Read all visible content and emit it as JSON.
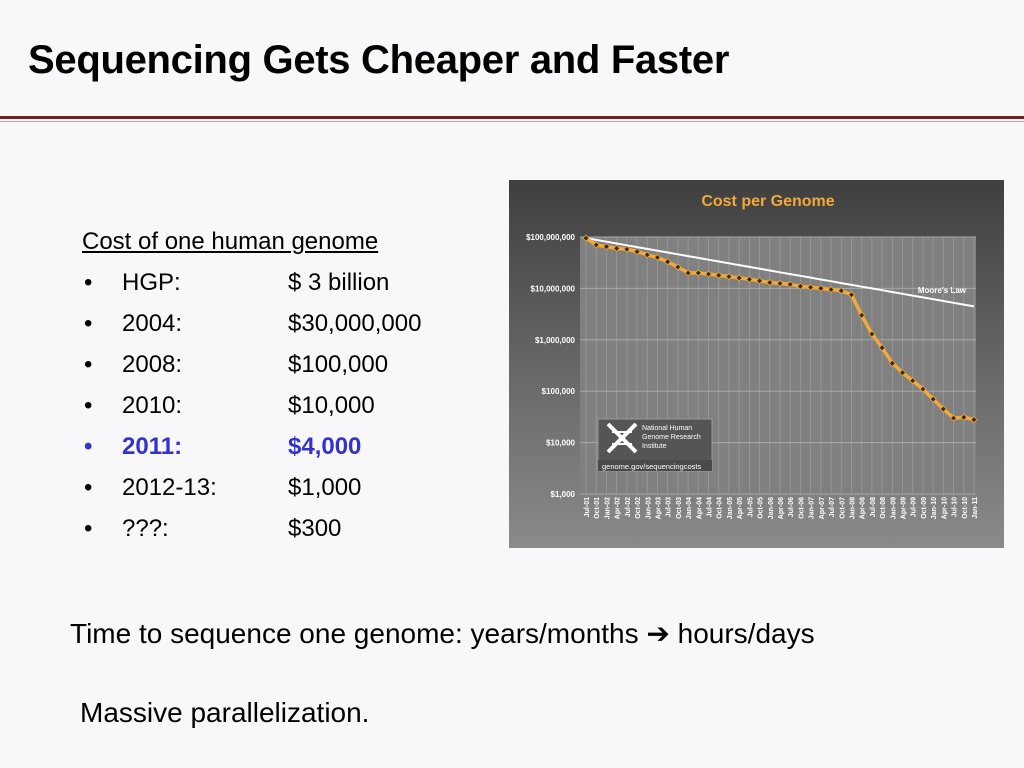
{
  "slide": {
    "title": "Sequencing Gets Cheaper and Faster",
    "list_heading": "Cost of one human genome",
    "items": [
      {
        "label": "HGP:",
        "value": "$ 3 billion",
        "highlight": false
      },
      {
        "label": "2004:",
        "value": "$30,000,000",
        "highlight": false
      },
      {
        "label": "2008:",
        "value": "$100,000",
        "highlight": false
      },
      {
        "label": "2010:",
        "value": "$10,000",
        "highlight": false
      },
      {
        "label": "2011:",
        "value": "$4,000",
        "highlight": true
      },
      {
        "label": "2012-13:",
        "value": "$1,000",
        "highlight": false
      },
      {
        "label": "???:",
        "value": "$300",
        "highlight": false
      }
    ],
    "bullet": "•",
    "time_line": "Time to sequence one genome:  years/months ➔ hours/days",
    "parallel_line": "Massive parallelization."
  },
  "colors": {
    "accent_rule": "#7a1f1f",
    "highlight": "#3333cc",
    "chart_title": "#f2a93b",
    "series_line": "#f2a93b",
    "marker": "#3a2a00",
    "moores_law": "#ffffff"
  },
  "chart_data": {
    "type": "line",
    "title": "Cost per Genome",
    "yscale": "log",
    "ylim": [
      1000,
      100000000
    ],
    "y_ticks": [
      100000000,
      10000000,
      1000000,
      100000,
      10000,
      1000
    ],
    "y_tick_labels": [
      "$100,000,000",
      "$10,000,000",
      "$1,000,000",
      "$100,000",
      "$10,000",
      "$1,000"
    ],
    "grid": true,
    "categories": [
      "Jul-01",
      "Oct-01",
      "Jan-02",
      "Apr-02",
      "Jul-02",
      "Oct-02",
      "Jan-03",
      "Apr-03",
      "Jul-03",
      "Oct-03",
      "Jan-04",
      "Apr-04",
      "Jul-04",
      "Oct-04",
      "Jan-05",
      "Apr-05",
      "Jul-05",
      "Oct-05",
      "Jan-06",
      "Apr-06",
      "Jul-06",
      "Oct-06",
      "Jan-07",
      "Apr-07",
      "Jul-07",
      "Oct-07",
      "Jan-08",
      "Apr-08",
      "Jul-08",
      "Oct-08",
      "Jan-09",
      "Apr-09",
      "Jul-09",
      "Oct-09",
      "Jan-10",
      "Apr-10",
      "Jul-10",
      "Oct-10",
      "Jan-11"
    ],
    "x_tick_labels": [
      "Jul-01",
      "Oct-01",
      "Jan-02",
      "Apr-02",
      "Jul-02",
      "Oct-02",
      "Jan-03",
      "Apr-03",
      "Jul-03",
      "Oct-03",
      "Jan-04",
      "Apr-04",
      "Jul-04",
      "Oct-04",
      "Jan-05",
      "Apr-05",
      "Jul-05",
      "Oct-05",
      "Jan-06",
      "Apr-06",
      "Jul-06",
      "Oct-06",
      "Jan-07",
      "Apr-07",
      "Jul-07",
      "Oct-07",
      "Jan-08",
      "Apr-08",
      "Jul-08",
      "Oct-08",
      "Jan-09",
      "Apr-09",
      "Jul-09",
      "Oct-09",
      "Jan-10",
      "Apr-10",
      "Jul-10",
      "Oct-10",
      "Jan-11"
    ],
    "series": [
      {
        "name": "",
        "values": [
          95000000,
          70000000,
          65000000,
          60000000,
          58000000,
          52000000,
          45000000,
          40000000,
          33000000,
          26000000,
          20000000,
          20000000,
          19000000,
          18000000,
          17000000,
          16000000,
          15000000,
          14000000,
          13000000,
          12500000,
          12000000,
          11000000,
          10500000,
          10000000,
          9500000,
          9000000,
          7500000,
          3000000,
          1300000,
          700000,
          350000,
          230000,
          160000,
          110000,
          70000,
          45000,
          30000,
          31000,
          28000
        ]
      },
      {
        "name": "Moore's Law",
        "values": [
          95000000,
          87700000,
          80900000,
          74600000,
          68900000,
          63500000,
          58600000,
          54100000,
          49900000,
          46100000,
          42500000,
          39200000,
          36200000,
          33400000,
          30800000,
          28400000,
          26200000,
          24200000,
          22300000,
          20600000,
          19000000,
          17600000,
          16200000,
          14900000,
          13800000,
          12700000,
          11700000,
          10800000,
          10000000,
          9220000,
          8510000,
          7850000,
          7240000,
          6680000,
          6170000,
          5690000,
          5250000,
          4850000,
          4470000
        ]
      }
    ],
    "logo_text": [
      "National Human",
      "Genome Research",
      "Institute"
    ],
    "source_text": "genome.gov/sequencingcosts"
  }
}
